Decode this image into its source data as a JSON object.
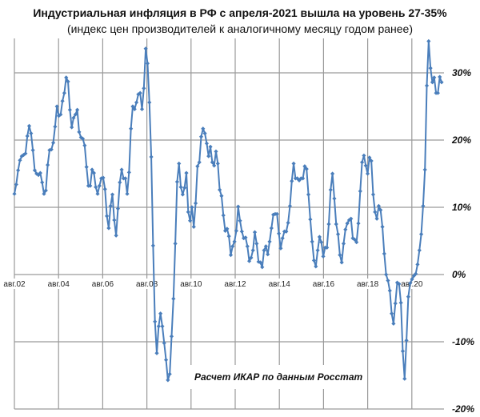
{
  "chart_data": {
    "type": "line",
    "title": "Индустриальная инфляция в РФ с апреля-2021 вышла на уровень 27-35%",
    "subtitle": "(индекс цен производителей к аналогичному месяцу годом ранее)",
    "annotation": "Расчет ИКАР по данным Росстат",
    "frequency": "monthly",
    "xlim": [
      "2002-08",
      "2021-03"
    ],
    "x_tick_labels": [
      "авг.02",
      "авг.04",
      "авг.06",
      "авг.08",
      "авг.10",
      "авг.12",
      "авг.14",
      "авг.16",
      "авг.18",
      "авг.20"
    ],
    "ylim": [
      -20,
      35
    ],
    "y_ticks": [
      30,
      20,
      10,
      0,
      -10,
      -20
    ],
    "y_tick_labels": [
      "30%",
      "20%",
      "10%",
      "0%",
      "-10%",
      "-20%"
    ],
    "y_axis_position": "right",
    "grid": true,
    "series_color": "#4a7ebb",
    "values": [
      12.0,
      13.4,
      15.5,
      17.0,
      17.6,
      17.8,
      18.0,
      20.6,
      22.1,
      21.0,
      18.5,
      15.5,
      15.0,
      14.8,
      15.1,
      13.7,
      12.0,
      12.5,
      16.3,
      18.5,
      18.6,
      19.6,
      22.0,
      25.0,
      23.6,
      23.8,
      25.8,
      27.0,
      29.3,
      28.7,
      24.5,
      21.9,
      23.3,
      23.8,
      24.5,
      21.2,
      20.4,
      20.2,
      19.2,
      16.0,
      13.2,
      13.2,
      15.6,
      15.1,
      13.0,
      12.0,
      13.2,
      14.3,
      14.4,
      12.7,
      8.7,
      6.9,
      10.2,
      11.9,
      8.1,
      5.8,
      9.8,
      13.7,
      15.6,
      14.3,
      14.3,
      12.0,
      15.2,
      21.7,
      25.0,
      24.6,
      25.6,
      26.8,
      27.0,
      24.6,
      27.7,
      33.6,
      31.4,
      25.6,
      17.5,
      4.3,
      -7.0,
      -11.7,
      -7.7,
      -5.8,
      -7.7,
      -10.2,
      -12.7,
      -15.7,
      -14.8,
      -9.2,
      -3.6,
      4.6,
      13.8,
      16.5,
      13.0,
      11.9,
      12.9,
      15.1,
      9.3,
      8.0,
      10.0,
      7.1,
      10.6,
      16.1,
      16.7,
      20.5,
      21.7,
      21.0,
      19.5,
      17.6,
      19.0,
      16.7,
      16.2,
      18.3,
      16.5,
      12.6,
      11.7,
      8.8,
      6.5,
      6.8,
      5.7,
      2.9,
      4.2,
      4.9,
      6.5,
      10.1,
      8.0,
      6.4,
      5.4,
      5.5,
      4.2,
      2.0,
      2.5,
      3.6,
      6.3,
      4.6,
      1.9,
      1.8,
      1.1,
      3.6,
      4.2,
      3.0,
      4.9,
      6.9,
      8.9,
      9.0,
      9.0,
      6.1,
      3.9,
      5.4,
      6.4,
      6.4,
      7.7,
      10.2,
      13.9,
      16.5,
      14.3,
      14.3,
      14.0,
      14.3,
      14.3,
      16.1,
      15.7,
      11.9,
      8.2,
      4.9,
      2.1,
      1.2,
      3.6,
      5.6,
      4.8,
      2.7,
      4.0,
      4.0,
      7.5,
      12.6,
      15.0,
      11.3,
      7.5,
      6.0,
      2.9,
      1.8,
      4.6,
      6.7,
      7.6,
      8.1,
      8.3,
      5.4,
      5.2,
      4.8,
      7.6,
      12.4,
      16.7,
      17.7,
      16.2,
      15.0,
      17.4,
      16.9,
      11.9,
      9.3,
      8.3,
      10.2,
      9.6,
      7.1,
      3.1,
      0.0,
      -0.9,
      -2.4,
      -5.8,
      -7.3,
      -4.3,
      -1.2,
      -1.4,
      -4.2,
      -11.4,
      -15.5,
      -9.8,
      -3.3,
      -1.3,
      -0.7,
      -0.2,
      0.1,
      1.5,
      3.6,
      6.0,
      10.2,
      15.6,
      28.1,
      34.7,
      30.7,
      28.6,
      29.3,
      27.0,
      27.0,
      29.4,
      28.6
    ]
  }
}
